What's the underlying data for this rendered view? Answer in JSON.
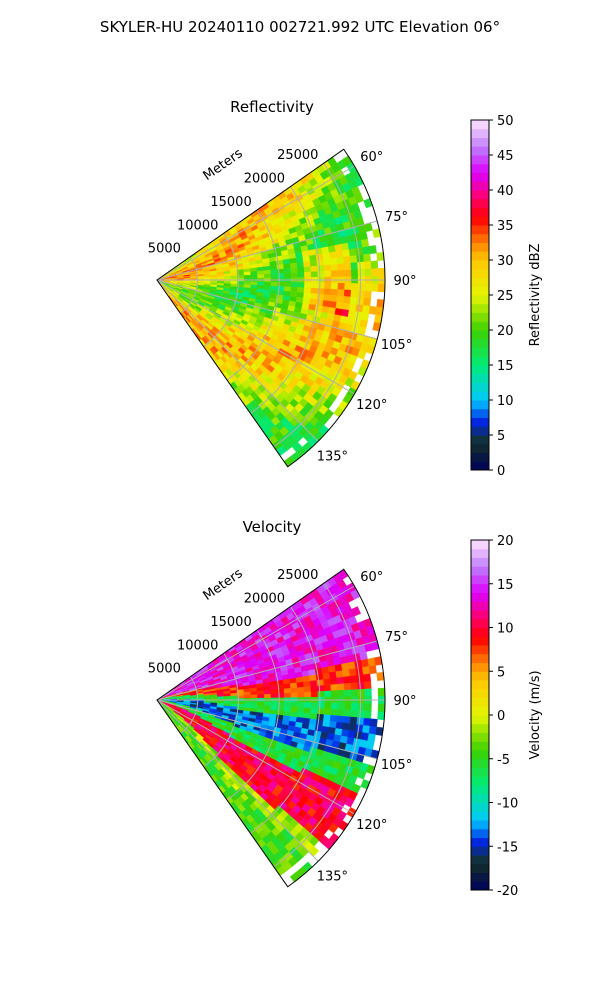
{
  "figure": {
    "title": "SKYLER-HU  20240110  002721.992 UTC Elevation 06°"
  },
  "chart_data": [
    {
      "type": "heatmap",
      "projection": "polar-sector",
      "title": "Reflectivity",
      "radial_label": "Meters",
      "radial_ticks": [
        5000,
        10000,
        15000,
        20000,
        25000
      ],
      "azimuth_ticks": [
        60,
        75,
        90,
        105,
        120,
        135
      ],
      "azimuth_range_deg": [
        55,
        145
      ],
      "range_max_m": 28000,
      "grid": true,
      "colorbar": {
        "label": "Reflectivity dBZ",
        "min": 0,
        "max": 50,
        "ticks": [
          0,
          5,
          10,
          15,
          20,
          25,
          30,
          35,
          40,
          45,
          50
        ]
      },
      "field_description": "Mostly 20-30 dBZ with 30-40 dBZ bands"
    },
    {
      "type": "heatmap",
      "projection": "polar-sector",
      "title": "Velocity",
      "radial_label": "Meters",
      "radial_ticks": [
        5000,
        10000,
        15000,
        20000,
        25000
      ],
      "azimuth_ticks": [
        60,
        75,
        90,
        105,
        120,
        135
      ],
      "azimuth_range_deg": [
        55,
        145
      ],
      "range_max_m": 28000,
      "grid": true,
      "colorbar": {
        "label": "Velocity (m/s)",
        "min": -20,
        "max": 20,
        "ticks": [
          -20,
          -15,
          -10,
          -5,
          0,
          5,
          10,
          15,
          20
        ]
      },
      "field_description": "Positive (red/magenta) north, negative (green/cyan) center band, positive south"
    }
  ],
  "colors": {
    "grid": "#b0b0b0",
    "sector_outline": "#000000",
    "background": "#ffffff"
  }
}
